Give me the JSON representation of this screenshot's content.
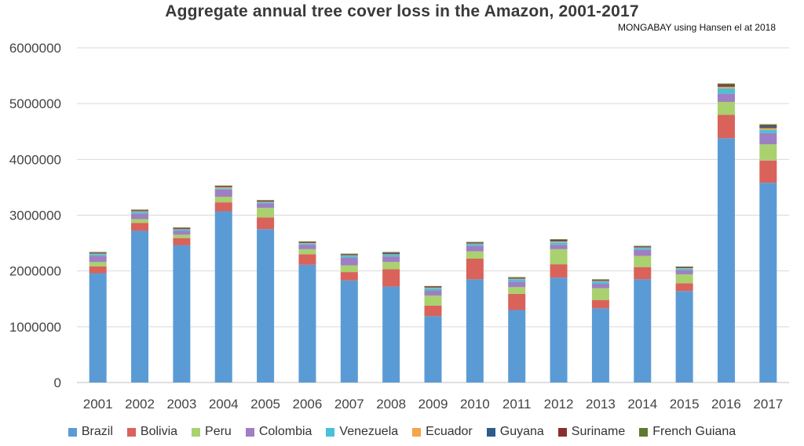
{
  "chart_data": {
    "type": "bar",
    "stacked": true,
    "title": "Aggregate annual tree cover loss in the Amazon, 2001-2017",
    "source_note": "MONGABAY using Hansen el at 2018",
    "xlabel": "",
    "ylabel": "",
    "ylim": [
      0,
      6000000
    ],
    "yticks": [
      "0",
      "1000000",
      "2000000",
      "3000000",
      "4000000",
      "5000000",
      "6000000"
    ],
    "grid": true,
    "legend_position": "bottom",
    "categories": [
      "2001",
      "2002",
      "2003",
      "2004",
      "2005",
      "2006",
      "2007",
      "2008",
      "2009",
      "2010",
      "2011",
      "2012",
      "2013",
      "2014",
      "2015",
      "2016",
      "2017"
    ],
    "series": [
      {
        "name": "Brazil",
        "color": "#5b9bd5",
        "values": [
          1960000,
          2720000,
          2460000,
          3070000,
          2750000,
          2110000,
          1830000,
          1720000,
          1190000,
          1850000,
          1300000,
          1880000,
          1330000,
          1850000,
          1640000,
          4380000,
          3580000
        ]
      },
      {
        "name": "Bolivia",
        "color": "#d9625b",
        "values": [
          120000,
          140000,
          130000,
          160000,
          210000,
          190000,
          150000,
          310000,
          190000,
          370000,
          290000,
          240000,
          150000,
          220000,
          140000,
          420000,
          400000
        ]
      },
      {
        "name": "Peru",
        "color": "#a9d16e",
        "values": [
          80000,
          70000,
          60000,
          100000,
          170000,
          90000,
          120000,
          130000,
          180000,
          130000,
          120000,
          270000,
          210000,
          200000,
          160000,
          230000,
          290000
        ]
      },
      {
        "name": "Colombia",
        "color": "#9e7fc3",
        "values": [
          110000,
          100000,
          70000,
          130000,
          80000,
          80000,
          140000,
          100000,
          90000,
          100000,
          100000,
          80000,
          80000,
          110000,
          70000,
          150000,
          200000
        ]
      },
      {
        "name": "Venezuela",
        "color": "#4bc0d9",
        "values": [
          30000,
          30000,
          20000,
          20000,
          20000,
          20000,
          30000,
          30000,
          40000,
          30000,
          40000,
          40000,
          40000,
          30000,
          30000,
          90000,
          60000
        ]
      },
      {
        "name": "Ecuador",
        "color": "#f5a54a",
        "values": [
          10000,
          10000,
          10000,
          20000,
          10000,
          10000,
          10000,
          10000,
          10000,
          10000,
          10000,
          20000,
          10000,
          10000,
          10000,
          30000,
          30000
        ]
      },
      {
        "name": "Guyana",
        "color": "#2e5b8a",
        "values": [
          10000,
          10000,
          10000,
          10000,
          10000,
          10000,
          10000,
          20000,
          10000,
          10000,
          10000,
          20000,
          10000,
          10000,
          10000,
          20000,
          30000
        ]
      },
      {
        "name": "Suriname",
        "color": "#8b2e2b",
        "values": [
          10000,
          10000,
          10000,
          10000,
          10000,
          10000,
          10000,
          10000,
          10000,
          10000,
          10000,
          10000,
          10000,
          10000,
          10000,
          20000,
          20000
        ]
      },
      {
        "name": "French Guiana",
        "color": "#5f7a2f",
        "values": [
          10000,
          10000,
          10000,
          10000,
          10000,
          10000,
          10000,
          10000,
          10000,
          10000,
          10000,
          10000,
          10000,
          10000,
          10000,
          20000,
          20000
        ]
      }
    ]
  }
}
